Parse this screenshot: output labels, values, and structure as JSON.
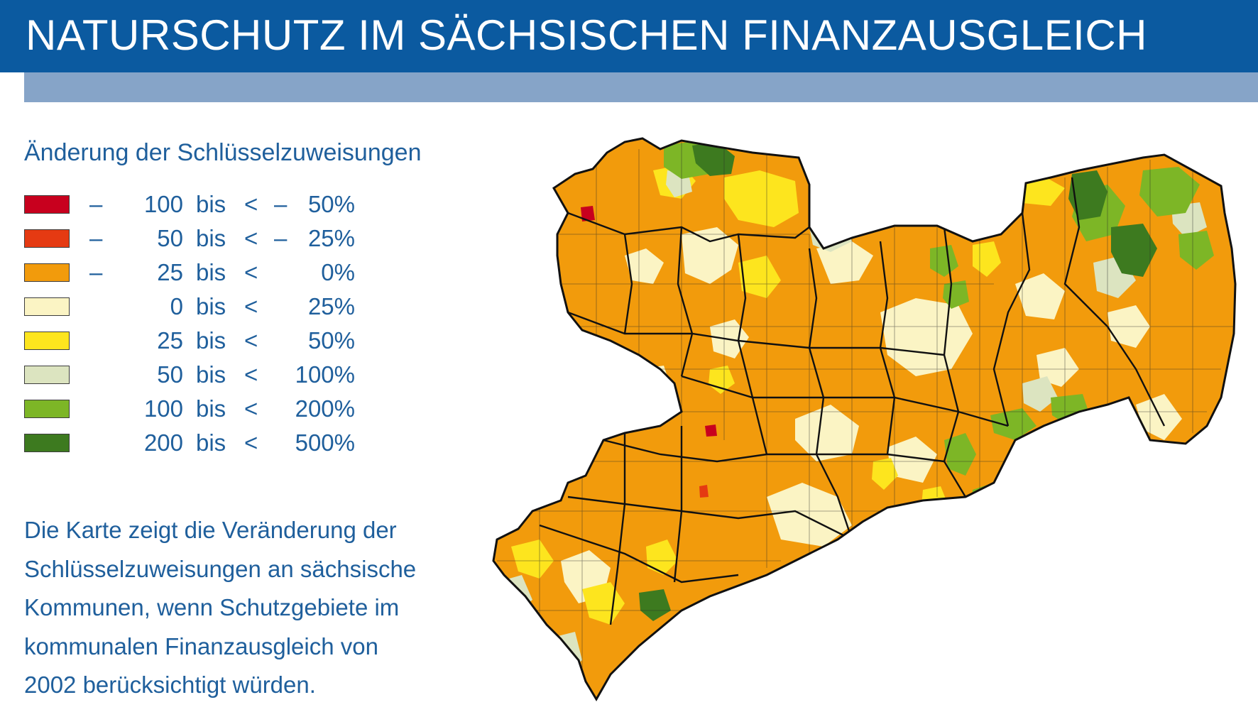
{
  "header": {
    "title": "NATURSCHUTZ IM SÄCHSISCHEN FINANZAUSGLEICH"
  },
  "legend": {
    "title": "Änderung der Schlüsselzuweisungen",
    "items": [
      {
        "sign_from": "–",
        "from": "100",
        "bis": "bis",
        "lt": "<",
        "sign_to": "–",
        "to": "50%",
        "color": "#c8001e"
      },
      {
        "sign_from": "–",
        "from": "50",
        "bis": "bis",
        "lt": "<",
        "sign_to": "–",
        "to": "25%",
        "color": "#e53a12"
      },
      {
        "sign_from": "–",
        "from": "25",
        "bis": "bis",
        "lt": "<",
        "sign_to": "",
        "to": "0%",
        "color": "#f29b0c"
      },
      {
        "sign_from": "",
        "from": "0",
        "bis": "bis",
        "lt": "<",
        "sign_to": "",
        "to": "25%",
        "color": "#fbf4c4"
      },
      {
        "sign_from": "",
        "from": "25",
        "bis": "bis",
        "lt": "<",
        "sign_to": "",
        "to": "50%",
        "color": "#fde51e"
      },
      {
        "sign_from": "",
        "from": "50",
        "bis": "bis",
        "lt": "<",
        "sign_to": "",
        "to": "100%",
        "color": "#dce4c0"
      },
      {
        "sign_from": "",
        "from": "100",
        "bis": "bis",
        "lt": "<",
        "sign_to": "",
        "to": "200%",
        "color": "#7db626"
      },
      {
        "sign_from": "",
        "from": "200",
        "bis": "bis",
        "lt": "<",
        "sign_to": "",
        "to": "500%",
        "color": "#3d7a1f"
      }
    ]
  },
  "description": {
    "lines": [
      "Die Karte zeigt die Veränderung der",
      "Schlüsselzuweisungen an sächsische",
      "Kommunen, wenn Schutzgebiete im",
      "kommunalen Finanzausgleich von",
      "2002 berücksichtigt würden."
    ]
  },
  "map": {
    "region": "Sachsen",
    "border_color": "#1a1a1a",
    "dominant_class_color": "#f29b0c"
  }
}
